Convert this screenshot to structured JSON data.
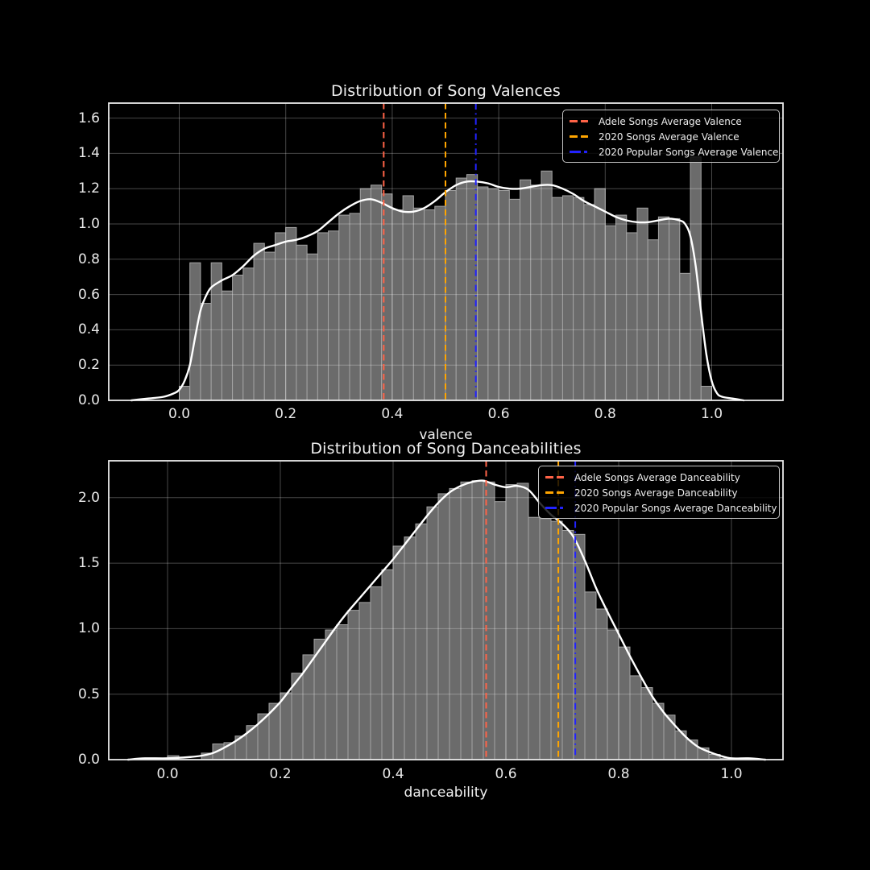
{
  "figure": {
    "background": "#000000",
    "text_color": "#f0f0f0",
    "bar_fill": "#6b6b6b",
    "bar_edge": "#a3a3a3",
    "kde_color": "#ffffff",
    "grid_color": "rgba(255,255,255,0.28)",
    "spine_color": "#eaeaea",
    "legend_background": "rgba(0,0,0,0.8)",
    "legend_border": "#c4c4c4"
  },
  "chart_data": [
    {
      "type": "histogram+kde",
      "title": "Distribution of Song Valences",
      "xlabel": "valence",
      "ylabel": "",
      "grid": true,
      "legend_position": "upper-right",
      "bin_start": 0.0,
      "bin_width": 0.02,
      "densities": [
        0.08,
        0.78,
        0.55,
        0.78,
        0.62,
        0.71,
        0.75,
        0.89,
        0.84,
        0.95,
        0.98,
        0.88,
        0.83,
        0.95,
        0.96,
        1.05,
        1.06,
        1.2,
        1.22,
        1.17,
        1.08,
        1.16,
        1.09,
        1.08,
        1.1,
        1.19,
        1.26,
        1.28,
        1.21,
        1.2,
        1.19,
        1.14,
        1.25,
        1.22,
        1.3,
        1.15,
        1.16,
        1.15,
        1.11,
        1.2,
        0.99,
        1.05,
        0.95,
        1.09,
        0.91,
        1.04,
        1.03,
        0.72,
        1.38,
        0.08
      ],
      "kde": [
        [
          -0.09,
          0
        ],
        [
          -0.06,
          0.01
        ],
        [
          -0.03,
          0.02
        ],
        [
          -0.01,
          0.04
        ],
        [
          0,
          0.06
        ],
        [
          0.01,
          0.11
        ],
        [
          0.02,
          0.2
        ],
        [
          0.03,
          0.36
        ],
        [
          0.04,
          0.51
        ],
        [
          0.05,
          0.59
        ],
        [
          0.06,
          0.64
        ],
        [
          0.08,
          0.68
        ],
        [
          0.1,
          0.71
        ],
        [
          0.12,
          0.76
        ],
        [
          0.14,
          0.82
        ],
        [
          0.16,
          0.86
        ],
        [
          0.18,
          0.88
        ],
        [
          0.2,
          0.9
        ],
        [
          0.22,
          0.91
        ],
        [
          0.24,
          0.93
        ],
        [
          0.26,
          0.96
        ],
        [
          0.28,
          1.01
        ],
        [
          0.3,
          1.06
        ],
        [
          0.32,
          1.1
        ],
        [
          0.34,
          1.13
        ],
        [
          0.36,
          1.14
        ],
        [
          0.38,
          1.12
        ],
        [
          0.4,
          1.09
        ],
        [
          0.42,
          1.07
        ],
        [
          0.44,
          1.07
        ],
        [
          0.46,
          1.09
        ],
        [
          0.48,
          1.13
        ],
        [
          0.5,
          1.18
        ],
        [
          0.52,
          1.22
        ],
        [
          0.54,
          1.24
        ],
        [
          0.56,
          1.24
        ],
        [
          0.58,
          1.23
        ],
        [
          0.6,
          1.21
        ],
        [
          0.62,
          1.2
        ],
        [
          0.64,
          1.2
        ],
        [
          0.66,
          1.21
        ],
        [
          0.68,
          1.22
        ],
        [
          0.7,
          1.22
        ],
        [
          0.72,
          1.2
        ],
        [
          0.74,
          1.17
        ],
        [
          0.76,
          1.13
        ],
        [
          0.78,
          1.1
        ],
        [
          0.8,
          1.07
        ],
        [
          0.82,
          1.04
        ],
        [
          0.84,
          1.02
        ],
        [
          0.86,
          1.01
        ],
        [
          0.88,
          1.01
        ],
        [
          0.9,
          1.02
        ],
        [
          0.92,
          1.03
        ],
        [
          0.94,
          1.02
        ],
        [
          0.95,
          1.0
        ],
        [
          0.96,
          0.93
        ],
        [
          0.97,
          0.76
        ],
        [
          0.98,
          0.5
        ],
        [
          0.99,
          0.26
        ],
        [
          1.0,
          0.11
        ],
        [
          1.01,
          0.04
        ],
        [
          1.02,
          0.02
        ],
        [
          1.04,
          0.01
        ],
        [
          1.06,
          0
        ]
      ],
      "avg_lines": [
        {
          "label": "Adele Songs Average Valence",
          "x": 0.384,
          "color": "#ff6347",
          "style": "dashed"
        },
        {
          "label": "2020 Songs Average Valence",
          "x": 0.5,
          "color": "#ffa500",
          "style": "dashed"
        },
        {
          "label": "2020 Popular Songs Average Valence",
          "x": 0.557,
          "color": "#2222ff",
          "style": "dashdot"
        }
      ],
      "xtick_labels": [
        "0.0",
        "0.2",
        "0.4",
        "0.6",
        "0.8",
        "1.0"
      ],
      "xtick_values": [
        0,
        0.2,
        0.4,
        0.6,
        0.8,
        1.0
      ],
      "ytick_labels": [
        "0.0",
        "0.2",
        "0.4",
        "0.6",
        "0.8",
        "1.0",
        "1.2",
        "1.4",
        "1.6"
      ],
      "ytick_values": [
        0,
        0.2,
        0.4,
        0.6,
        0.8,
        1.0,
        1.2,
        1.4,
        1.6
      ],
      "xlim": [
        -0.132,
        1.134
      ],
      "ylim": [
        0,
        1.685
      ]
    },
    {
      "type": "histogram+kde",
      "title": "Distribution of Song Danceabilities",
      "xlabel": "danceability",
      "ylabel": "",
      "grid": true,
      "legend_position": "upper-right",
      "bin_start": 0.0,
      "bin_width": 0.02,
      "densities": [
        0.03,
        0,
        0,
        0.05,
        0.12,
        0.13,
        0.18,
        0.26,
        0.35,
        0.43,
        0.51,
        0.66,
        0.8,
        0.92,
        0.99,
        1.03,
        1.14,
        1.2,
        1.32,
        1.45,
        1.63,
        1.7,
        1.8,
        1.93,
        2.03,
        2.07,
        2.12,
        2.13,
        2.12,
        1.97,
        2.1,
        2.11,
        1.85,
        1.84,
        1.82,
        1.75,
        1.72,
        1.28,
        1.15,
        0.99,
        0.86,
        0.64,
        0.55,
        0.43,
        0.34,
        0.22,
        0.15,
        0.09,
        0.04,
        0.01
      ],
      "kde": [
        [
          -0.07,
          0
        ],
        [
          -0.04,
          0.01
        ],
        [
          0,
          0.01
        ],
        [
          0.04,
          0.02
        ],
        [
          0.06,
          0.03
        ],
        [
          0.08,
          0.05
        ],
        [
          0.1,
          0.09
        ],
        [
          0.12,
          0.14
        ],
        [
          0.14,
          0.2
        ],
        [
          0.16,
          0.27
        ],
        [
          0.18,
          0.35
        ],
        [
          0.2,
          0.44
        ],
        [
          0.22,
          0.55
        ],
        [
          0.24,
          0.66
        ],
        [
          0.26,
          0.78
        ],
        [
          0.28,
          0.9
        ],
        [
          0.3,
          1.02
        ],
        [
          0.32,
          1.13
        ],
        [
          0.34,
          1.23
        ],
        [
          0.36,
          1.33
        ],
        [
          0.38,
          1.43
        ],
        [
          0.4,
          1.53
        ],
        [
          0.42,
          1.64
        ],
        [
          0.44,
          1.75
        ],
        [
          0.46,
          1.86
        ],
        [
          0.48,
          1.96
        ],
        [
          0.5,
          2.04
        ],
        [
          0.52,
          2.09
        ],
        [
          0.54,
          2.12
        ],
        [
          0.56,
          2.13
        ],
        [
          0.58,
          2.1
        ],
        [
          0.6,
          2.08
        ],
        [
          0.62,
          2.09
        ],
        [
          0.64,
          2.06
        ],
        [
          0.66,
          1.96
        ],
        [
          0.68,
          1.87
        ],
        [
          0.7,
          1.8
        ],
        [
          0.72,
          1.7
        ],
        [
          0.74,
          1.52
        ],
        [
          0.76,
          1.31
        ],
        [
          0.78,
          1.13
        ],
        [
          0.8,
          0.96
        ],
        [
          0.82,
          0.79
        ],
        [
          0.84,
          0.63
        ],
        [
          0.86,
          0.48
        ],
        [
          0.88,
          0.36
        ],
        [
          0.9,
          0.26
        ],
        [
          0.92,
          0.17
        ],
        [
          0.94,
          0.1
        ],
        [
          0.96,
          0.06
        ],
        [
          0.98,
          0.03
        ],
        [
          1.0,
          0.01
        ],
        [
          1.03,
          0.01
        ],
        [
          1.06,
          0
        ]
      ],
      "avg_lines": [
        {
          "label": "Adele Songs Average Danceability",
          "x": 0.565,
          "color": "#ff6347",
          "style": "dashed"
        },
        {
          "label": "2020 Songs Average Danceability",
          "x": 0.693,
          "color": "#ffa500",
          "style": "dashed"
        },
        {
          "label": "2020 Popular Songs Average Danceability",
          "x": 0.723,
          "color": "#2222ff",
          "style": "dashdot"
        }
      ],
      "xtick_labels": [
        "0.0",
        "0.2",
        "0.4",
        "0.6",
        "0.8",
        "1.0"
      ],
      "xtick_values": [
        0,
        0.2,
        0.4,
        0.6,
        0.8,
        1.0
      ],
      "ytick_labels": [
        "0.0",
        "0.5",
        "1.0",
        "1.5",
        "2.0"
      ],
      "ytick_values": [
        0,
        0.5,
        1.0,
        1.5,
        2.0
      ],
      "xlim": [
        -0.104,
        1.091
      ],
      "ylim": [
        0,
        2.283
      ]
    }
  ]
}
